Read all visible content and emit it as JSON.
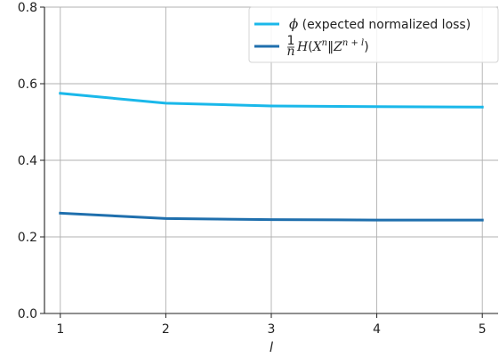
{
  "chart_data": {
    "type": "line",
    "x": [
      1,
      2,
      3,
      4,
      5
    ],
    "series": [
      {
        "name": "ϕ (expected normalized loss)",
        "color": "#1ab8ea",
        "values": [
          0.575,
          0.549,
          0.542,
          0.54,
          0.539
        ]
      },
      {
        "name": "(1/n) H(X^n ‖ Z^(n+l))",
        "color": "#1f6fad",
        "values": [
          0.262,
          0.248,
          0.245,
          0.244,
          0.244
        ]
      }
    ],
    "xlabel": "l",
    "ylabel": "",
    "xlim": [
      0.85,
      5.15
    ],
    "ylim": [
      0.0,
      0.8
    ],
    "xticks": [
      "1",
      "2",
      "3",
      "4",
      "5"
    ],
    "yticks": [
      "0.0",
      "0.2",
      "0.4",
      "0.6",
      "0.8"
    ],
    "grid": true,
    "legend_position": "top-right"
  }
}
